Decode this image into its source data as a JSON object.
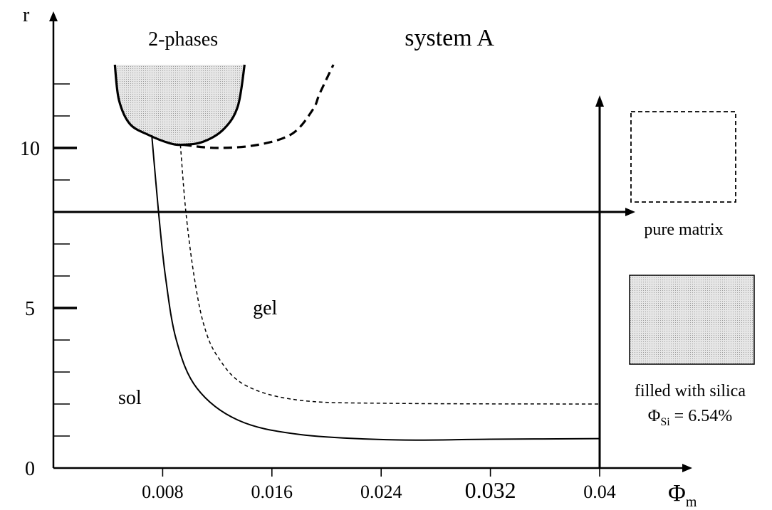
{
  "chart_data": {
    "type": "line",
    "title": "system A",
    "xlabel": "Φm",
    "ylabel": "r",
    "xlim": [
      0,
      0.045
    ],
    "ylim": [
      0,
      14
    ],
    "x_ticks": [
      "0.008",
      "0.016",
      "0.024",
      "0.032",
      "0.04"
    ],
    "y_tick_labels": [
      "0",
      "5",
      "10"
    ],
    "grid": false,
    "series": [
      {
        "style": "solid-bold",
        "points": [
          [
            0.0045,
            12.6
          ],
          [
            0.0048,
            11.5
          ],
          [
            0.0056,
            10.75
          ],
          [
            0.007,
            10.4
          ],
          [
            0.0085,
            10.15
          ],
          [
            0.0095,
            10.1
          ],
          [
            0.011,
            10.2
          ],
          [
            0.0125,
            10.6
          ],
          [
            0.0135,
            11.3
          ],
          [
            0.014,
            12.6
          ]
        ]
      },
      {
        "style": "dashed-bold",
        "points": [
          [
            0.0095,
            10.1
          ],
          [
            0.012,
            10.0
          ],
          [
            0.015,
            10.1
          ],
          [
            0.0175,
            10.45
          ],
          [
            0.019,
            11.2
          ],
          [
            0.0195,
            11.7
          ],
          [
            0.0205,
            12.6
          ]
        ]
      },
      {
        "style": "solid-thin",
        "points": [
          [
            0.0072,
            10.4
          ],
          [
            0.0077,
            8.0
          ],
          [
            0.0082,
            6.0
          ],
          [
            0.009,
            4.0
          ],
          [
            0.0105,
            2.5
          ],
          [
            0.0135,
            1.5
          ],
          [
            0.018,
            1.05
          ],
          [
            0.025,
            0.88
          ],
          [
            0.032,
            0.9
          ],
          [
            0.04,
            0.92
          ]
        ]
      },
      {
        "style": "dashed-thin",
        "points": [
          [
            0.0093,
            10.1
          ],
          [
            0.0097,
            8.0
          ],
          [
            0.0103,
            6.0
          ],
          [
            0.011,
            4.5
          ],
          [
            0.012,
            3.5
          ],
          [
            0.014,
            2.6
          ],
          [
            0.018,
            2.12
          ],
          [
            0.025,
            2.02
          ],
          [
            0.04,
            2.0
          ]
        ]
      }
    ],
    "annotations": [
      {
        "text": "2-phases",
        "x": 0.0095,
        "y": 13.2
      },
      {
        "text": "system A",
        "x": 0.029,
        "y": 13.2
      },
      {
        "text": "gel",
        "x": 0.0155,
        "y": 4.8
      },
      {
        "text": "sol",
        "x": 0.0056,
        "y": 2.0
      }
    ],
    "arrow_lines": {
      "horizontal_r": 8.0,
      "vertical_phi": 0.04
    },
    "legend": [
      {
        "label": "pure matrix",
        "fill": "none",
        "border": "dashed"
      },
      {
        "label_line1": "filled with silica",
        "label_line2_prefix": "Φ",
        "label_line2_sub": "Si",
        "label_line2_suffix": " = 6.54%",
        "fill": "#d0d0d0",
        "border": "solid"
      }
    ]
  }
}
